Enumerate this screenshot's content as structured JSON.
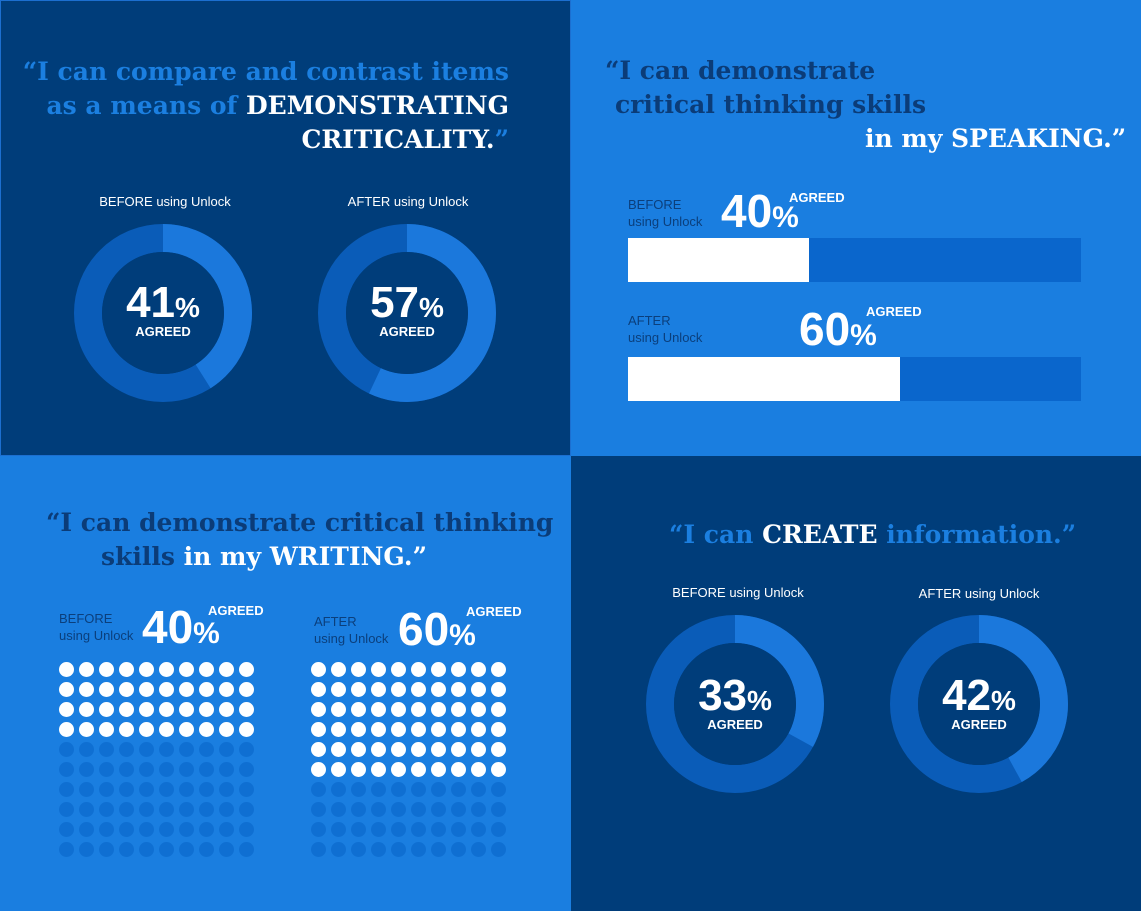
{
  "colors": {
    "navy": "#003d7a",
    "blue": "#1a7ee0",
    "donut_track": "#0a5cb8",
    "donut_fill": "#1b78dc",
    "bar_track": "#0a66cc",
    "white": "#ffffff"
  },
  "panel_critical": {
    "quote": [
      "“I can compare and contrast items",
      "as a means of ",
      "DEMONSTRATING",
      "CRITICALITY.",
      "”"
    ],
    "before_caption": "BEFORE using Unlock",
    "after_caption": "AFTER using Unlock",
    "before_value": "41",
    "after_value": "57",
    "percent": "%",
    "agreed": "AGREED"
  },
  "panel_speaking": {
    "quote": [
      "“I can demonstrate",
      "critical thinking skills",
      "in my SPEAKING.”"
    ],
    "before_caption": [
      "BEFORE",
      "using Unlock"
    ],
    "after_caption": [
      "AFTER",
      "using Unlock"
    ],
    "before_value": "40",
    "after_value": "60",
    "percent": "%",
    "agreed": "AGREED"
  },
  "panel_writing": {
    "quote": [
      "“I can demonstrate critical thinking",
      "skills ",
      "in my WRITING.”"
    ],
    "before_caption": [
      "BEFORE",
      "using Unlock"
    ],
    "after_caption": [
      "AFTER",
      "using Unlock"
    ],
    "before_value": "40",
    "after_value": "60",
    "percent": "%",
    "agreed": "AGREED"
  },
  "panel_create": {
    "quote": [
      "“I can ",
      "CREATE",
      " information.”"
    ],
    "before_caption": "BEFORE using Unlock",
    "after_caption": "AFTER using Unlock",
    "before_value": "33",
    "after_value": "42",
    "percent": "%",
    "agreed": "AGREED"
  },
  "chart_data": [
    {
      "type": "pie",
      "group": "CRITICALITY",
      "categories": [
        "BEFORE using Unlock",
        "AFTER using Unlock"
      ],
      "values": [
        41,
        57
      ],
      "unit": "% AGREED"
    },
    {
      "type": "bar",
      "group": "SPEAKING",
      "categories": [
        "BEFORE using Unlock",
        "AFTER using Unlock"
      ],
      "values": [
        40,
        60
      ],
      "unit": "% AGREED",
      "ylim": [
        0,
        100
      ]
    },
    {
      "type": "table",
      "group": "WRITING",
      "categories": [
        "BEFORE using Unlock",
        "AFTER using Unlock"
      ],
      "values": [
        40,
        60
      ],
      "unit": "% AGREED",
      "grid": "10x10"
    },
    {
      "type": "pie",
      "group": "CREATE",
      "categories": [
        "BEFORE using Unlock",
        "AFTER using Unlock"
      ],
      "values": [
        33,
        42
      ],
      "unit": "% AGREED"
    }
  ]
}
